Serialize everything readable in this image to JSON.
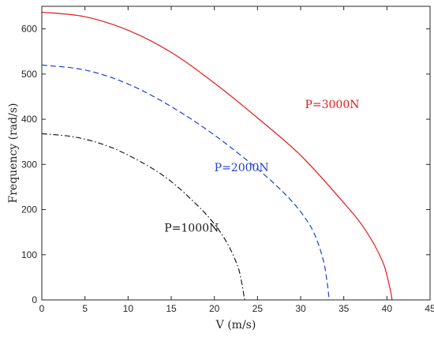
{
  "chart_data": {
    "type": "line",
    "title": "",
    "xlabel": "V (m/s)",
    "ylabel": "Frequency (rad/s)",
    "xlim": [
      0,
      45
    ],
    "ylim": [
      0,
      650
    ],
    "xticks": [
      "0",
      "5",
      "10",
      "15",
      "20",
      "25",
      "30",
      "35",
      "40",
      "45"
    ],
    "yticks": [
      "0",
      "100",
      "200",
      "300",
      "400",
      "500",
      "600"
    ],
    "grid": false,
    "series": [
      {
        "name": "P=3000N",
        "color": "#e41a1c",
        "line_style": "solid",
        "x": [
          0,
          5,
          10,
          15,
          20,
          25,
          30,
          35,
          37.5,
          39.5,
          40.3,
          40.6
        ],
        "y": [
          637,
          627,
          597,
          548,
          480,
          403,
          320,
          215,
          155,
          85,
          30,
          0
        ]
      },
      {
        "name": "P=2000N",
        "color": "#1f3fd4",
        "line_style": "dashed",
        "x": [
          0,
          5,
          10,
          15,
          20,
          25,
          28,
          30,
          31.5,
          32.6,
          33.1,
          33.3
        ],
        "y": [
          520,
          509,
          478,
          428,
          365,
          290,
          238,
          195,
          150,
          90,
          35,
          0
        ]
      },
      {
        "name": "P=1000N",
        "color": "#1a1a1a",
        "line_style": "dashdot",
        "x": [
          0,
          4,
          8,
          12,
          15,
          18,
          20,
          21.5,
          22.7,
          23.2,
          23.5
        ],
        "y": [
          368,
          360,
          338,
          300,
          262,
          210,
          168,
          125,
          75,
          35,
          0
        ]
      }
    ]
  }
}
